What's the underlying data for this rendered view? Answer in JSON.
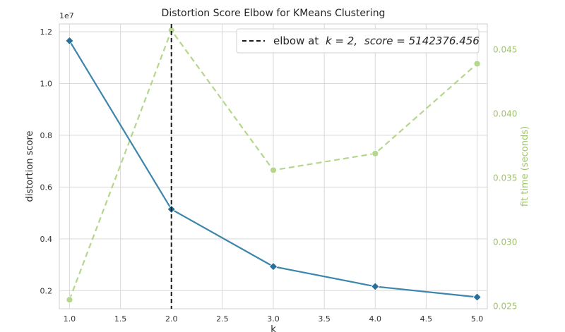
{
  "chart_data": {
    "type": "line",
    "title": "Distortion Score Elbow for KMeans Clustering",
    "xlabel": "k",
    "ylabel": "distortion score",
    "y2label": "fit time (seconds)",
    "y_offset_label": "1e7",
    "xlim": [
      0.9,
      5.1
    ],
    "ylim": [
      0.13,
      1.23
    ],
    "y2lim": [
      0.0248,
      0.047
    ],
    "x_ticks": [
      1.0,
      1.5,
      2.0,
      2.5,
      3.0,
      3.5,
      4.0,
      4.5,
      5.0
    ],
    "x_tick_labels": [
      "1.0",
      "1.5",
      "2.0",
      "2.5",
      "3.0",
      "3.5",
      "4.0",
      "4.5",
      "5.0"
    ],
    "y_ticks": [
      0.2,
      0.4,
      0.6,
      0.8,
      1.0,
      1.2
    ],
    "y_tick_labels": [
      "0.2",
      "0.4",
      "0.6",
      "0.8",
      "1.0",
      "1.2"
    ],
    "y2_ticks": [
      0.025,
      0.03,
      0.035,
      0.04,
      0.045
    ],
    "y2_tick_labels": [
      "0.025",
      "0.030",
      "0.035",
      "0.040",
      "0.045"
    ],
    "grid": true,
    "legend_position": "top-right",
    "series": [
      {
        "axis": "left",
        "x": [
          1,
          2,
          3,
          4,
          5
        ],
        "values": [
          1.165,
          0.5142,
          0.293,
          0.216,
          0.175
        ],
        "color": "#3d86ab",
        "style": "solid",
        "marker": "diamond"
      },
      {
        "axis": "right",
        "x": [
          1,
          2,
          3,
          4,
          5
        ],
        "values": [
          0.0255,
          0.0465,
          0.0356,
          0.0369,
          0.0439
        ],
        "color": "#b5d68d",
        "style": "dashed",
        "marker": "circle"
      }
    ],
    "elbow": {
      "k": 2,
      "legend_label": "elbow at",
      "legend_k_part": "k = 2,",
      "legend_score_part": "score = 5142376.456",
      "color": "#1a1a1a"
    }
  }
}
